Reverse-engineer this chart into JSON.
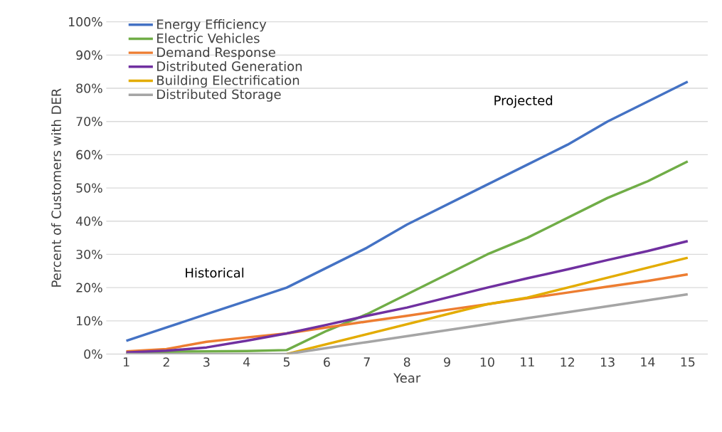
{
  "chart_data": {
    "type": "line",
    "xlabel": "Year",
    "ylabel": "Percent of Customers with DER",
    "x": [
      1,
      2,
      3,
      4,
      5,
      6,
      7,
      8,
      9,
      10,
      11,
      12,
      13,
      14,
      15
    ],
    "xlim": [
      0.5,
      15.5
    ],
    "xticks": [
      1,
      2,
      3,
      4,
      5,
      6,
      7,
      8,
      9,
      10,
      11,
      12,
      13,
      14,
      15
    ],
    "ylim": [
      0,
      100
    ],
    "yticks": [
      {
        "value": 0,
        "label": "0%"
      },
      {
        "value": 10,
        "label": "10%"
      },
      {
        "value": 20,
        "label": "20%"
      },
      {
        "value": 30,
        "label": "30%"
      },
      {
        "value": 40,
        "label": "40%"
      },
      {
        "value": 50,
        "label": "50%"
      },
      {
        "value": 60,
        "label": "60%"
      },
      {
        "value": 70,
        "label": "70%"
      },
      {
        "value": 80,
        "label": "80%"
      },
      {
        "value": 90,
        "label": "90%"
      },
      {
        "value": 100,
        "label": "100%"
      }
    ],
    "grid": "y",
    "legend": "top left",
    "marker": "none",
    "line_style": "solid",
    "annotations": [
      "Historical",
      "Projected"
    ],
    "series": [
      {
        "name": "Energy Efficiency",
        "color": "#4472c4",
        "values": [
          4,
          8,
          12,
          16,
          20,
          26,
          32,
          39,
          45,
          51,
          57,
          63,
          70,
          76,
          82
        ]
      },
      {
        "name": "Electric Vehicles",
        "color": "#70ad47",
        "values": [
          0.5,
          0.7,
          0.8,
          0.9,
          1.2,
          7,
          12,
          18,
          24,
          30,
          35,
          41,
          47,
          52,
          58
        ]
      },
      {
        "name": "Demand Response",
        "color": "#ed7d31",
        "values": [
          0.8,
          1.5,
          3.7,
          5,
          6.2,
          8,
          9.8,
          11.5,
          13.3,
          15,
          16.8,
          18.5,
          20.3,
          22,
          24
        ]
      },
      {
        "name": "Distributed Generation",
        "color": "#7030a0",
        "values": [
          0.5,
          1,
          2,
          4,
          6.2,
          8.8,
          11.5,
          14,
          17,
          20,
          22.8,
          25.5,
          28.3,
          31,
          34
        ]
      },
      {
        "name": "Building Electrification",
        "color": "#e3ac00",
        "values": [
          null,
          null,
          null,
          null,
          0,
          3,
          6,
          9,
          12,
          15,
          17,
          20,
          23,
          26,
          29
        ]
      },
      {
        "name": "Distributed Storage",
        "color": "#a5a5a5",
        "values": [
          0,
          0,
          0,
          0,
          0,
          1.8,
          3.6,
          5.4,
          7.2,
          9,
          10.8,
          12.6,
          14.4,
          16.2,
          18
        ]
      }
    ]
  }
}
